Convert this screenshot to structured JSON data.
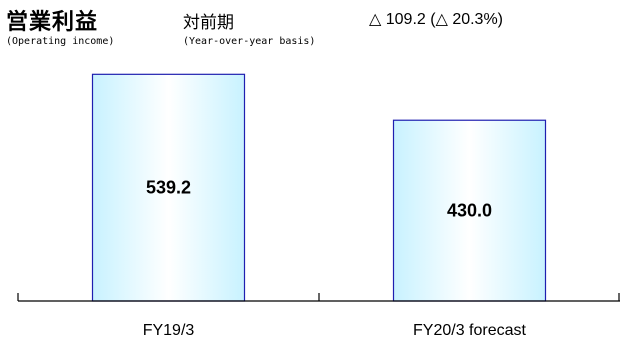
{
  "header": {
    "title": "営業利益",
    "title_en": "(Operating income)",
    "yoy_label": "対前期",
    "yoy_label_en": "(Year-over-year basis)",
    "change": "△ 109.2 (△ 20.3%)"
  },
  "colors": {
    "bar_edge": "#1f1fb0",
    "bar_fill_light": "#ffffff",
    "bar_fill_dark": "#c8f2ff",
    "axis": "#000000"
  },
  "chart_data": {
    "type": "bar",
    "title": "営業利益",
    "categories": [
      "FY19/3",
      "FY20/3 forecast"
    ],
    "values": [
      539.2,
      430.0
    ],
    "value_labels": [
      "539.2",
      "430.0"
    ],
    "xlabel": "",
    "ylabel": "",
    "ylim": [
      0,
      578
    ],
    "grid": false,
    "legend": "none"
  }
}
